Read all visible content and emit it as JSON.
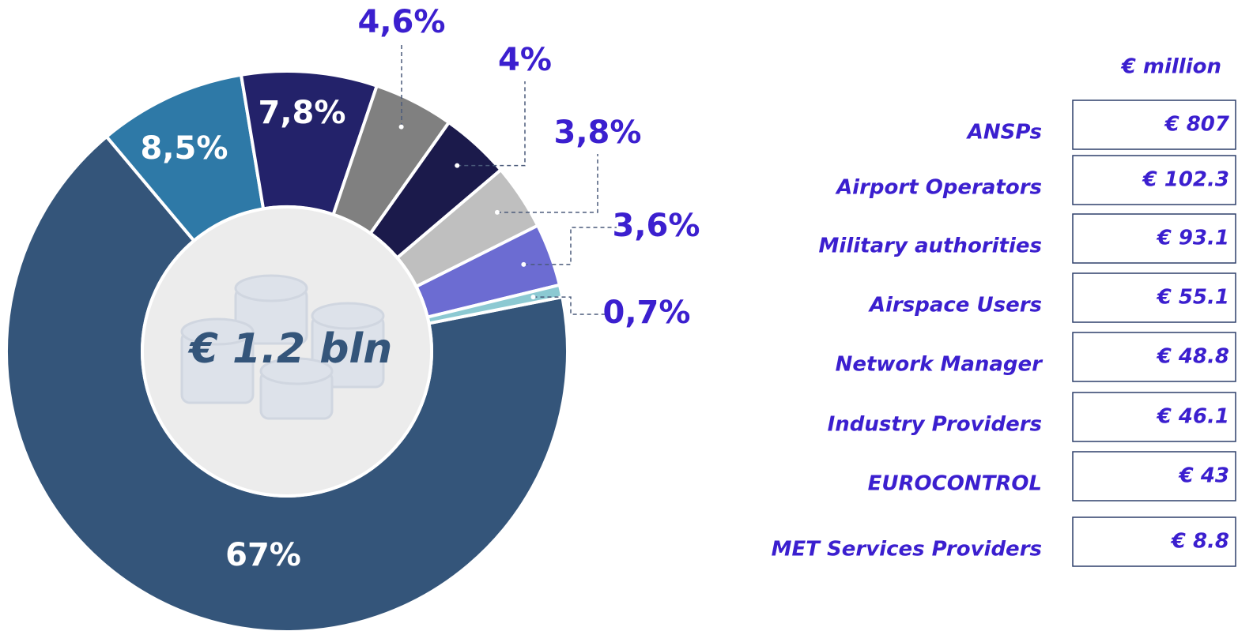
{
  "chart_data": {
    "type": "pie",
    "values": [
      67,
      8.5,
      7.8,
      4.6,
      4,
      3.8,
      3.6,
      0.7
    ],
    "value_labels": [
      "67%",
      "8,5%",
      "7,8%",
      "4,6%",
      "4%",
      "3,8%",
      "3,6%",
      "0,7%"
    ],
    "colors": [
      "#34557a",
      "#2e79a7",
      "#23226a",
      "#808080",
      "#1b1a4b",
      "#bfbfbf",
      "#6c6cd2",
      "#8cc9d2"
    ],
    "center_label": "€ 1.2 bln"
  },
  "table": {
    "unit": "€ million",
    "rows": [
      {
        "name": "ANSPs",
        "amount": "€ 807"
      },
      {
        "name": "Airport Operators",
        "amount": "€ 102.3"
      },
      {
        "name": "Military authorities",
        "amount": "€ 93.1"
      },
      {
        "name": "Airspace Users",
        "amount": "€ 55.1"
      },
      {
        "name": "Network Manager",
        "amount": "€ 48.8"
      },
      {
        "name": "Industry Providers",
        "amount": "€ 46.1"
      },
      {
        "name": "EUROCONTROL",
        "amount": "€ 43"
      },
      {
        "name": "MET Services Providers",
        "amount": "€ 8.8"
      }
    ]
  }
}
